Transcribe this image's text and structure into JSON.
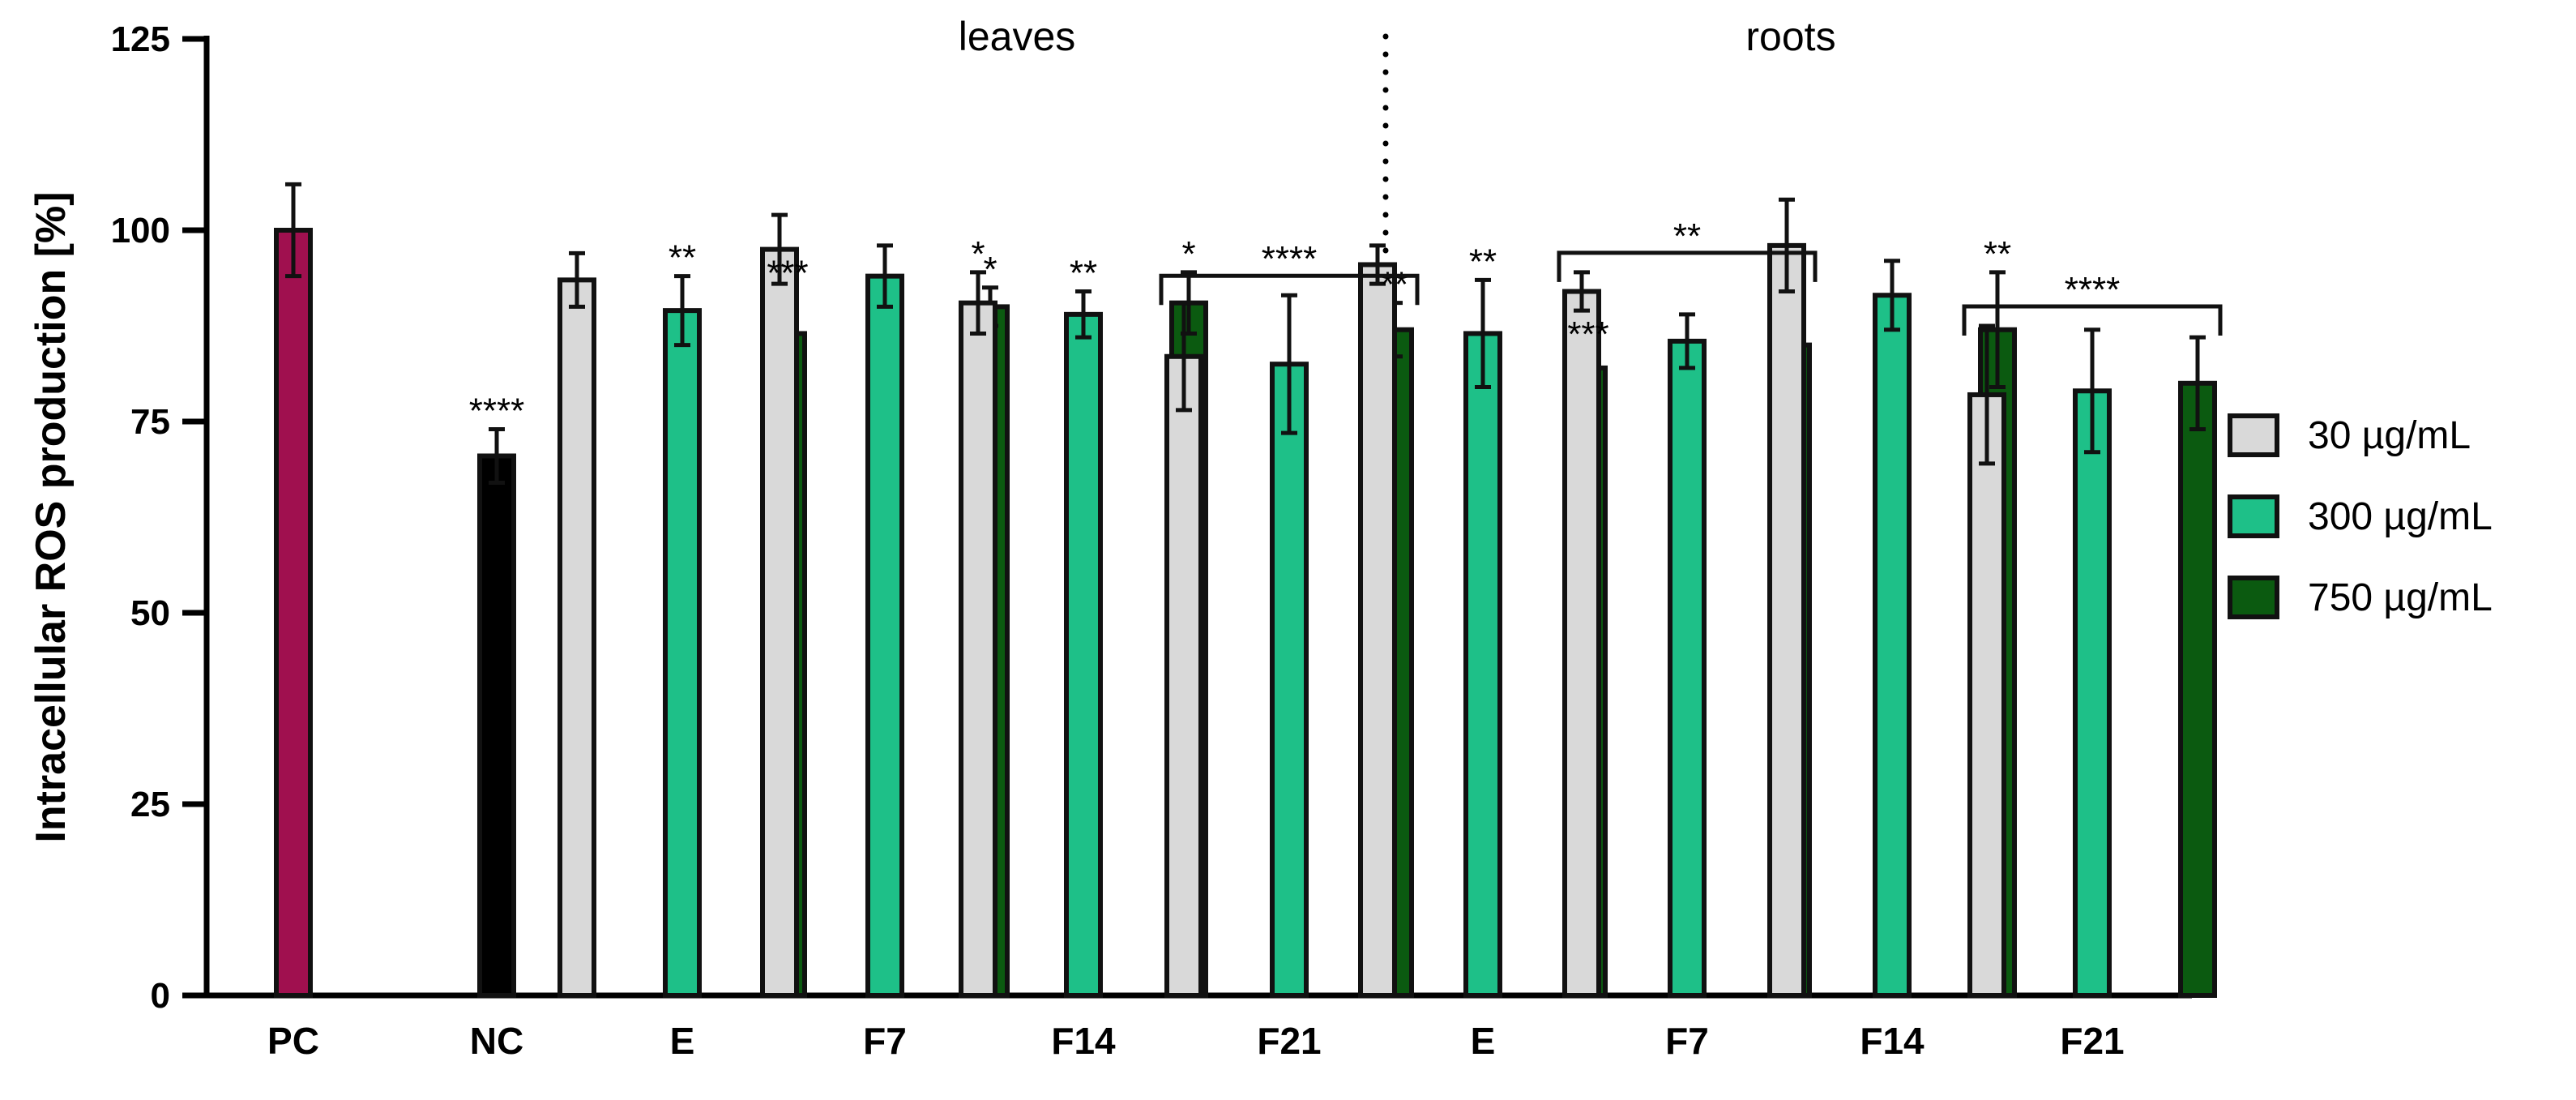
{
  "chart_data": {
    "type": "bar",
    "ylabel": "Intracellular ROS production [%]",
    "xlabel": "",
    "ylim": [
      0,
      125
    ],
    "yticks": [
      0,
      25,
      50,
      75,
      100,
      125
    ],
    "ytick_labels": [
      "0",
      "25",
      "50",
      "75",
      "100",
      "125"
    ],
    "grid": false,
    "legend_position": "right",
    "group_labels": [
      "leaves",
      "roots"
    ],
    "colors": {
      "PC": "#a0104f",
      "NC": "#000000",
      "30": "#d9d9d9",
      "300": "#1ec088",
      "750": "#0b5a10"
    },
    "legend": [
      {
        "key": "30",
        "label": "30 µg/mL"
      },
      {
        "key": "300",
        "label": "300 µg/mL"
      },
      {
        "key": "750",
        "label": "750 µg/mL"
      }
    ],
    "controls": [
      {
        "label": "PC",
        "value": 100,
        "err": 6,
        "sig": ""
      },
      {
        "label": "NC",
        "value": 70.5,
        "err": 3.5,
        "sig": "****"
      }
    ],
    "groups": [
      {
        "label": "E",
        "section": "leaves",
        "bars": [
          {
            "conc": "30",
            "value": 93.5,
            "err": 3.5,
            "sig": ""
          },
          {
            "conc": "300",
            "value": 89.5,
            "err": 4.5,
            "sig": "**"
          },
          {
            "conc": "750",
            "value": 86.5,
            "err": 5.5,
            "sig": "***"
          }
        ],
        "bracket": ""
      },
      {
        "label": "F7",
        "section": "leaves",
        "bars": [
          {
            "conc": "30",
            "value": 97.5,
            "err": 4.5,
            "sig": ""
          },
          {
            "conc": "300",
            "value": 94,
            "err": 4,
            "sig": ""
          },
          {
            "conc": "750",
            "value": 90,
            "err": 2.5,
            "sig": "*"
          }
        ],
        "bracket": ""
      },
      {
        "label": "F14",
        "section": "leaves",
        "bars": [
          {
            "conc": "30",
            "value": 90.5,
            "err": 4,
            "sig": "*"
          },
          {
            "conc": "300",
            "value": 89,
            "err": 3,
            "sig": "**"
          },
          {
            "conc": "750",
            "value": 90.5,
            "err": 4,
            "sig": "*"
          }
        ],
        "bracket": ""
      },
      {
        "label": "F21",
        "section": "leaves",
        "bars": [
          {
            "conc": "30",
            "value": 83.5,
            "err": 7,
            "sig": ""
          },
          {
            "conc": "300",
            "value": 82.5,
            "err": 9,
            "sig": ""
          },
          {
            "conc": "750",
            "value": 87,
            "err": 3.5,
            "sig": "**"
          }
        ],
        "bracket": "****"
      },
      {
        "label": "E",
        "section": "roots",
        "bars": [
          {
            "conc": "30",
            "value": 95.5,
            "err": 2.5,
            "sig": ""
          },
          {
            "conc": "300",
            "value": 86.5,
            "err": 7,
            "sig": "**"
          },
          {
            "conc": "750",
            "value": 82,
            "err": 2,
            "sig": "***"
          }
        ],
        "bracket": ""
      },
      {
        "label": "F7",
        "section": "roots",
        "bars": [
          {
            "conc": "30",
            "value": 92,
            "err": 2.5,
            "sig": ""
          },
          {
            "conc": "300",
            "value": 85.5,
            "err": 3.5,
            "sig": ""
          },
          {
            "conc": "750",
            "value": 85,
            "err": 1.5,
            "sig": ""
          }
        ],
        "bracket": "**"
      },
      {
        "label": "F14",
        "section": "roots",
        "bars": [
          {
            "conc": "30",
            "value": 98,
            "err": 6,
            "sig": ""
          },
          {
            "conc": "300",
            "value": 91.5,
            "err": 4.5,
            "sig": ""
          },
          {
            "conc": "750",
            "value": 87,
            "err": 7.5,
            "sig": "**"
          }
        ],
        "bracket": ""
      },
      {
        "label": "F21",
        "section": "roots",
        "bars": [
          {
            "conc": "30",
            "value": 78.5,
            "err": 9,
            "sig": ""
          },
          {
            "conc": "300",
            "value": 79,
            "err": 8,
            "sig": ""
          },
          {
            "conc": "750",
            "value": 80,
            "err": 6,
            "sig": ""
          }
        ],
        "bracket": "****"
      }
    ]
  }
}
